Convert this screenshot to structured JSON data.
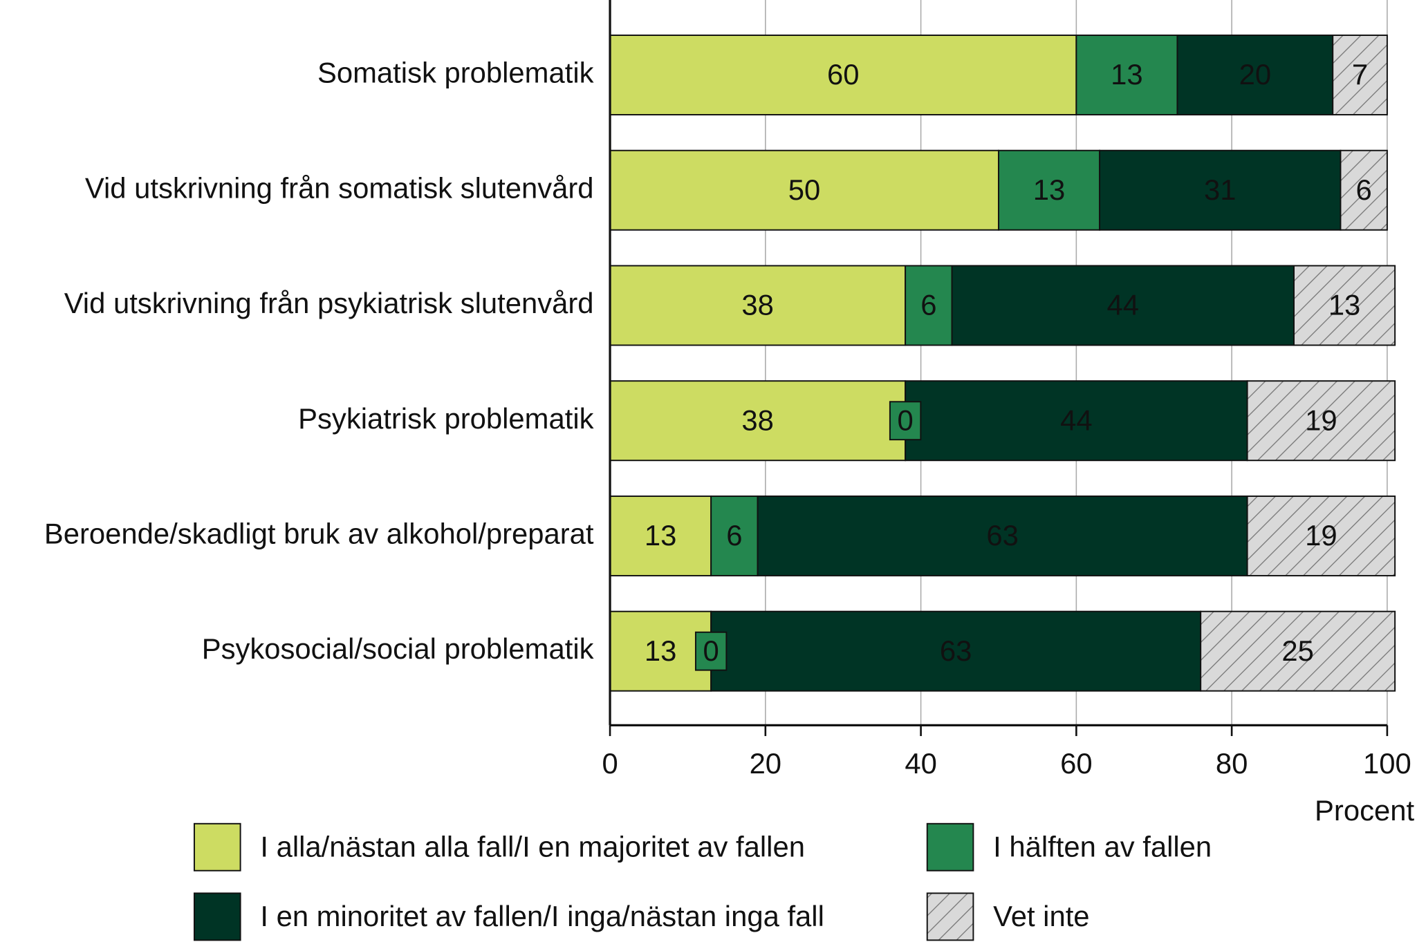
{
  "chart_data": {
    "type": "stacked_barh",
    "categories": [
      "Somatisk problematik",
      "Vid utskrivning från somatisk slutenvård",
      "Vid utskrivning från psykiatrisk slutenvård",
      "Psykiatrisk problematik",
      "Beroende/skadligt bruk av alkohol/preparat",
      "Psykosocial/social problematik"
    ],
    "series": [
      {
        "name": "I alla/nästan alla fall/I en majoritet av fallen",
        "color": "#cddc62",
        "values": [
          60,
          50,
          38,
          38,
          13,
          13
        ]
      },
      {
        "name": "I hälften av fallen",
        "color": "#24874f",
        "values": [
          13,
          13,
          6,
          0,
          6,
          0
        ]
      },
      {
        "name": "I en minoritet av fallen/I inga/nästan inga fall",
        "color": "#003425",
        "values": [
          20,
          31,
          44,
          44,
          63,
          63
        ]
      },
      {
        "name": "Vet inte",
        "color": "#d9d9d9",
        "hatch": true,
        "values": [
          7,
          6,
          13,
          19,
          19,
          25
        ]
      }
    ],
    "x_label": "Procent",
    "xlim": [
      0,
      100
    ],
    "xticks": [
      0,
      20,
      40,
      60,
      80,
      100
    ],
    "grid": true
  }
}
